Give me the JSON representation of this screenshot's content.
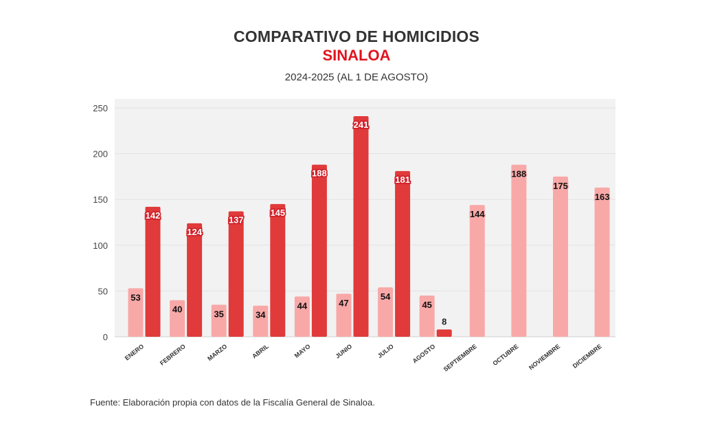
{
  "header": {
    "title": "COMPARATIVO DE HOMICIDIOS",
    "subtitle": "SINALOA",
    "period": "2024-2025 (AL 1 DE AGOSTO)"
  },
  "footer": {
    "source": "Fuente: Elaboración propia con datos de la Fiscalía General de Sinaloa."
  },
  "colors": {
    "series_2024": "#f9a8a8",
    "series_2025": "#e03a3a",
    "plot_background": "#f2f2f2"
  },
  "chart_data": {
    "type": "bar",
    "categories": [
      "ENERO",
      "FEBRERO",
      "MARZO",
      "ABRIL",
      "MAYO",
      "JUNIO",
      "JULIO",
      "AGOSTO",
      "SEPTIEMBRE",
      "OCTUBRE",
      "NOVIEMBRE",
      "DICIEMBRE"
    ],
    "series": [
      {
        "values": [
          53,
          40,
          35,
          34,
          44,
          47,
          54,
          45,
          144,
          188,
          175,
          163
        ]
      },
      {
        "values": [
          142,
          124,
          137,
          145,
          188,
          241,
          181,
          8,
          null,
          null,
          null,
          null
        ]
      }
    ],
    "ylim": [
      0,
      250
    ],
    "yticks": [
      0,
      50,
      100,
      150,
      200,
      250
    ],
    "grid": true,
    "legend": "none"
  }
}
